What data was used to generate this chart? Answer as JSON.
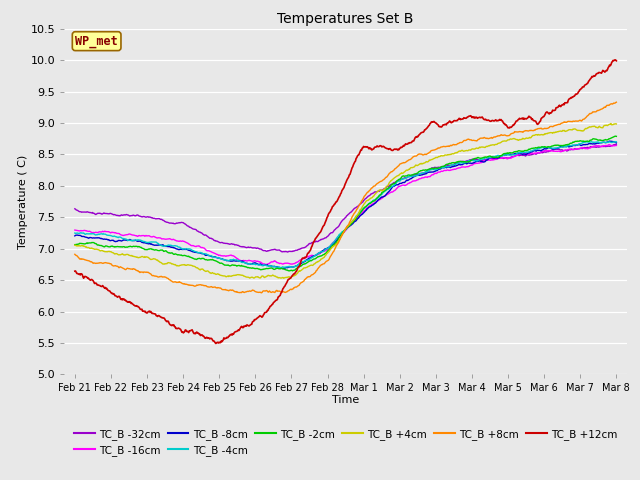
{
  "title": "Temperatures Set B",
  "xlabel": "Time",
  "ylabel": "Temperature ( C)",
  "ylim": [
    5.0,
    10.5
  ],
  "background_color": "#e8e8e8",
  "series": [
    {
      "label": "TC_B -32cm",
      "color": "#9900cc",
      "lw": 1.0
    },
    {
      "label": "TC_B -16cm",
      "color": "#ff00ff",
      "lw": 1.0
    },
    {
      "label": "TC_B -8cm",
      "color": "#0000cc",
      "lw": 1.0
    },
    {
      "label": "TC_B -4cm",
      "color": "#00cccc",
      "lw": 1.0
    },
    {
      "label": "TC_B -2cm",
      "color": "#00cc00",
      "lw": 1.0
    },
    {
      "label": "TC_B +4cm",
      "color": "#cccc00",
      "lw": 1.0
    },
    {
      "label": "TC_B +8cm",
      "color": "#ff8800",
      "lw": 1.0
    },
    {
      "label": "TC_B +12cm",
      "color": "#cc0000",
      "lw": 1.2
    }
  ],
  "xtick_labels": [
    "Feb 21",
    "Feb 22",
    "Feb 23",
    "Feb 24",
    "Feb 25",
    "Feb 26",
    "Feb 27",
    "Feb 28",
    "Mar 1",
    "Mar 2",
    "Mar 3",
    "Mar 4",
    "Mar 5",
    "Mar 6",
    "Mar 7",
    "Mar 8"
  ],
  "ytick_labels": [
    "5.0",
    "5.5",
    "6.0",
    "6.5",
    "7.0",
    "7.5",
    "8.0",
    "8.5",
    "9.0",
    "9.5",
    "10.0",
    "10.5"
  ],
  "wp_met_label": "WP_met",
  "wp_met_bg": "#ffff99",
  "wp_met_border": "#996600",
  "legend_ncol": 6
}
